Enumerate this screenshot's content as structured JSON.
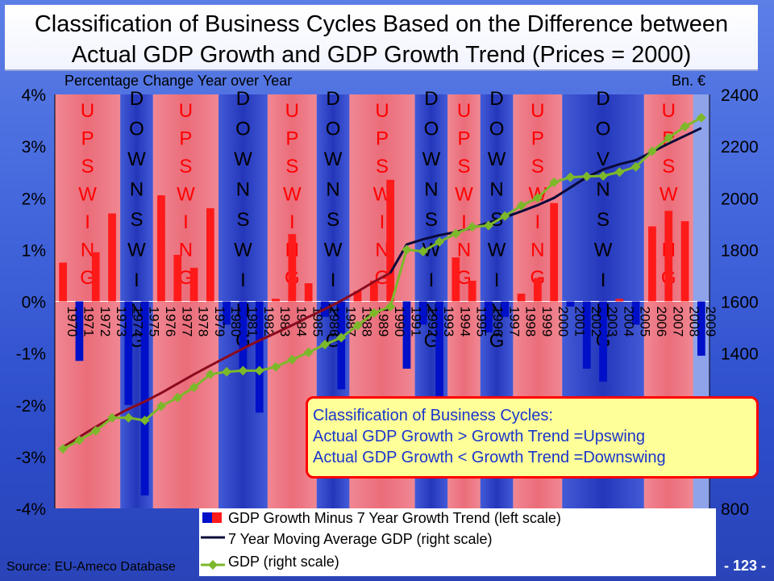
{
  "title": {
    "line1": "Classification of Business Cycles Based on the Difference between",
    "line2": "Actual GDP Growth and GDP Growth Trend (Prices = 2000)"
  },
  "left_axis_title": "Percentage Change Year over Year",
  "right_axis_title": "Bn. €",
  "classification_box": {
    "line1": "Classification of Business Cycles:",
    "line2": "Actual GDP Growth > Growth Trend =Upswing",
    "line3": "Actual GDP Growth < Growth Trend =Downswing"
  },
  "legend": {
    "bars": "GDP Growth Minus 7 Year Growth Trend (left scale)",
    "trend": "7 Year Moving Average GDP (right scale)",
    "gdp": "GDP (right scale)"
  },
  "source": "Source: EU-Ameco Database",
  "page_number": "- 123 -",
  "colors": {
    "up_band": "#f0707a",
    "down_band": "#2438c0",
    "bar_pos": "#ff1a1a",
    "bar_neg": "#0010c8",
    "gdp_line": "#7cb82a",
    "gdp_marker": "#7cb82a",
    "trend_line_a": "#8b0a1e",
    "trend_line_b": "#0a0a3a",
    "cycle_upswing_text": "#ff0000",
    "cycle_downswing_text": "#000000"
  },
  "chart_data": {
    "type": "bar",
    "years": [
      "1970",
      "1971",
      "1972",
      "1973",
      "1974",
      "1975",
      "1976",
      "1977",
      "1978",
      "1979",
      "1980",
      "1981",
      "1982",
      "1983",
      "1984",
      "1985",
      "1986",
      "1987",
      "1988",
      "1989",
      "1990",
      "1991",
      "1992",
      "1993",
      "1994",
      "1995",
      "1996",
      "1997",
      "1998",
      "1999",
      "2000",
      "2001",
      "2002",
      "2003",
      "2004",
      "2005",
      "2006",
      "2007",
      "2008",
      "2009"
    ],
    "left_axis": {
      "ylim": [
        -4,
        4
      ],
      "ticks": [
        "4%",
        "3%",
        "2%",
        "1%",
        "0%",
        "-1%",
        "-2%",
        "-3%",
        "-4%"
      ],
      "tick_values": [
        4,
        3,
        2,
        1,
        0,
        -1,
        -2,
        -3,
        -4
      ]
    },
    "right_axis": {
      "ylim": [
        800,
        2400
      ],
      "ticks": [
        "2400",
        "2200",
        "2000",
        "1800",
        "1600",
        "1400",
        "1200",
        "1000",
        "800"
      ],
      "tick_values": [
        2400,
        2200,
        2000,
        1800,
        1600,
        1400,
        1200,
        1000,
        800
      ]
    },
    "series": [
      {
        "name": "GDP Growth Minus 7 Year Growth Trend (left scale)",
        "axis": "left",
        "type": "bar",
        "values": [
          0.75,
          -1.15,
          0.95,
          1.7,
          -2.0,
          -3.75,
          2.05,
          0.9,
          0.65,
          1.8,
          -0.45,
          -1.3,
          -2.15,
          0.05,
          1.3,
          0.35,
          -0.3,
          -1.7,
          0.2,
          0.4,
          2.35,
          -1.3,
          -0.45,
          -1.85,
          0.85,
          0.4,
          -0.6,
          -0.3,
          0.15,
          0.45,
          1.9,
          -0.1,
          -1.3,
          -1.55,
          0.05,
          -0.45,
          1.45,
          1.75,
          1.55,
          -1.05
        ]
      },
      {
        "name": "7 Year Moving Average GDP (right scale)",
        "axis": "right",
        "type": "line",
        "values": [
          1037,
          1076,
          1115,
          1151,
          1184,
          1213,
          1246,
          1282,
          1318,
          1352,
          1385,
          1418,
          1449,
          1478,
          1508,
          1540,
          1570,
          1603,
          1638,
          1676,
          1710,
          1820,
          1840,
          1856,
          1868,
          1884,
          1904,
          1925,
          1948,
          1972,
          2000,
          2040,
          2080,
          2110,
          2130,
          2146,
          2178,
          2210,
          2240,
          2270
        ]
      },
      {
        "name": "GDP (right scale)",
        "axis": "right",
        "type": "line",
        "values": [
          1030,
          1063,
          1100,
          1150,
          1150,
          1140,
          1195,
          1228,
          1268,
          1318,
          1328,
          1332,
          1332,
          1347,
          1375,
          1403,
          1433,
          1460,
          1507,
          1555,
          1580,
          1800,
          1793,
          1830,
          1862,
          1888,
          1893,
          1930,
          1970,
          2000,
          2060,
          2080,
          2083,
          2085,
          2100,
          2120,
          2180,
          2232,
          2276,
          2310
        ]
      }
    ],
    "cycles": [
      {
        "phase": "UPSWING",
        "text": "UPSWING",
        "start": "1970",
        "end": "1973"
      },
      {
        "phase": "DOWNSWING",
        "text": "DOWNSWING",
        "start": "1974",
        "end": "1975"
      },
      {
        "phase": "UPSWING",
        "text": "UPSWING",
        "start": "1976",
        "end": "1979"
      },
      {
        "phase": "DOWNSWING",
        "text": "DOWNSWING",
        "start": "1980",
        "end": "1982"
      },
      {
        "phase": "UPSWING",
        "text": "UPSWING",
        "start": "1983",
        "end": "1985"
      },
      {
        "phase": "DOWNSWING",
        "text": "DOWNSWING",
        "start": "1986",
        "end": "1987"
      },
      {
        "phase": "UPSWING",
        "text": "UPSWING",
        "start": "1988",
        "end": "1991"
      },
      {
        "phase": "DOWNSWING",
        "text": "DOWNSWING",
        "start": "1992",
        "end": "1993"
      },
      {
        "phase": "UPSWING",
        "text": "UPSWING",
        "start": "1994",
        "end": "1995"
      },
      {
        "phase": "DOWNSWING",
        "text": "DOWNSWING",
        "start": "1996",
        "end": "1997"
      },
      {
        "phase": "UPSWING",
        "text": "UPSWING",
        "start": "1998",
        "end": "2000"
      },
      {
        "phase": "DOWNSWING",
        "text": "DOVNSWING",
        "start": "2001",
        "end": "2005"
      },
      {
        "phase": "UPSWING",
        "text": "UPSWING",
        "start": "2006",
        "end": "2008"
      }
    ]
  }
}
